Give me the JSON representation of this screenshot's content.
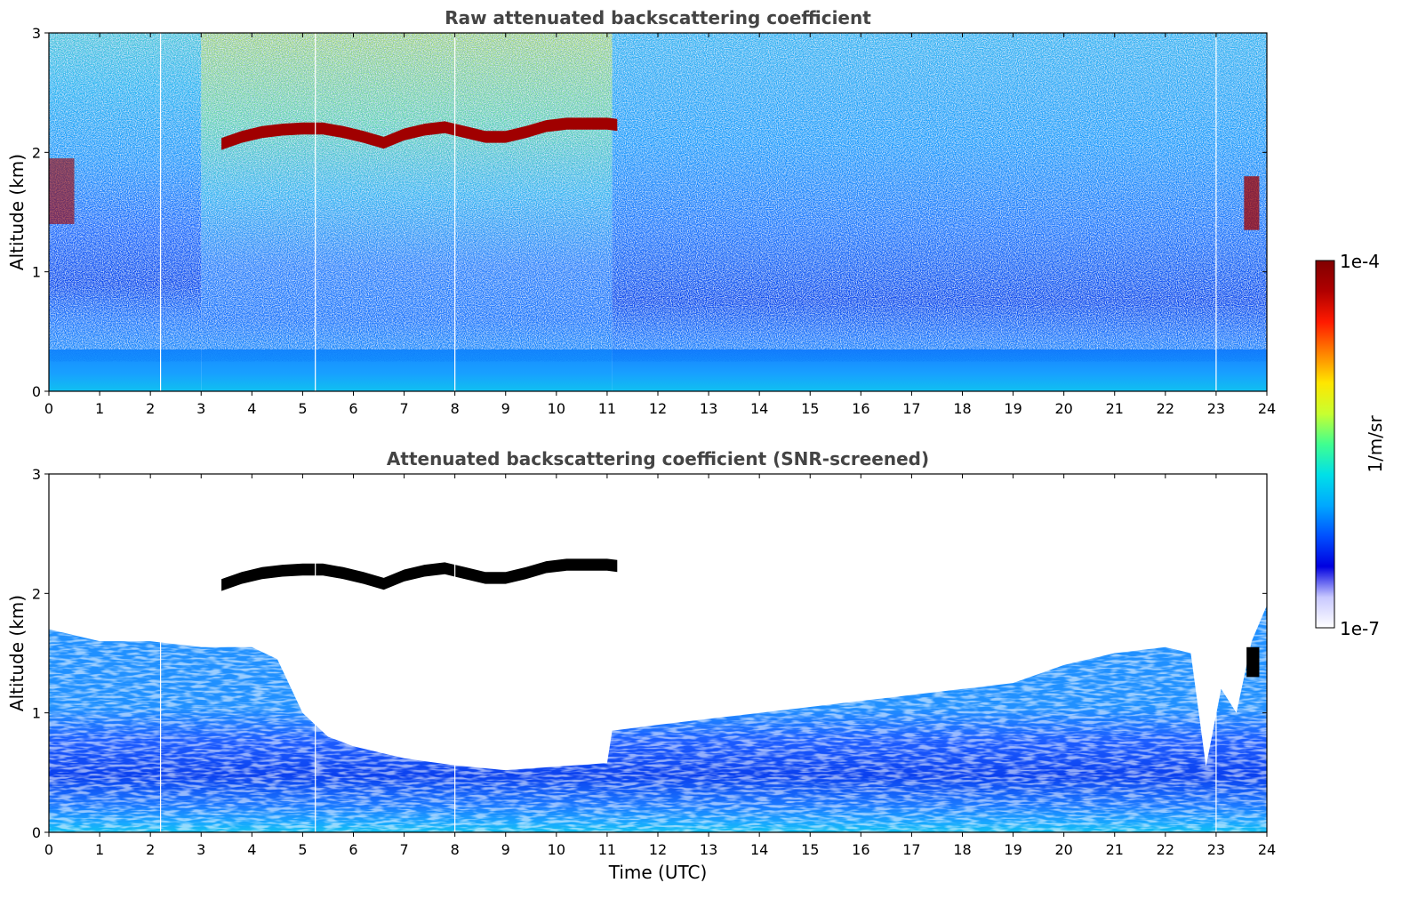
{
  "colors": {
    "colormap": [
      "#ffffff",
      "#c8c8ff",
      "#0000e0",
      "#0050ff",
      "#00a8ff",
      "#00e0e8",
      "#40ff90",
      "#c8ff30",
      "#ffe600",
      "#ff8000",
      "#ff1a00",
      "#b00000",
      "#800000"
    ],
    "feature": "#a00000",
    "feature_screened": "#000000",
    "title_color": "#444444"
  },
  "colorbar": {
    "min_label": "1e-7",
    "max_label": "1e-4",
    "unit_label": "1/m/sr",
    "scale": "log"
  },
  "chart_data": [
    {
      "type": "heatmap",
      "title": "Raw attenuated backscattering coefficient",
      "xlabel": "",
      "ylabel": "Altitude (km)",
      "xlim": [
        0,
        24
      ],
      "ylim": [
        0,
        3
      ],
      "x_ticks": [
        "0",
        "1",
        "2",
        "3",
        "4",
        "5",
        "6",
        "7",
        "8",
        "9",
        "10",
        "11",
        "12",
        "13",
        "14",
        "15",
        "16",
        "17",
        "18",
        "19",
        "20",
        "21",
        "22",
        "23",
        "24"
      ],
      "y_ticks": [
        "0",
        "1",
        "2",
        "3"
      ],
      "layer_top_km": [
        [
          3.4,
          2.12
        ],
        [
          3.8,
          2.18
        ],
        [
          4.2,
          2.22
        ],
        [
          4.6,
          2.24
        ],
        [
          5.0,
          2.25
        ],
        [
          5.4,
          2.25
        ],
        [
          5.8,
          2.22
        ],
        [
          6.2,
          2.18
        ],
        [
          6.6,
          2.13
        ],
        [
          7.0,
          2.2
        ],
        [
          7.4,
          2.24
        ],
        [
          7.8,
          2.26
        ],
        [
          8.2,
          2.22
        ],
        [
          8.6,
          2.18
        ],
        [
          9.0,
          2.18
        ],
        [
          9.4,
          2.22
        ],
        [
          9.8,
          2.27
        ],
        [
          10.2,
          2.29
        ],
        [
          10.6,
          2.29
        ],
        [
          11.0,
          2.29
        ],
        [
          11.2,
          2.28
        ]
      ],
      "noise_step_x": 11.1,
      "missing_profiles_x": [
        2.2,
        5.25,
        8.0,
        23.0
      ]
    },
    {
      "type": "heatmap",
      "title": "Attenuated backscattering coefficient (SNR-screened)",
      "xlabel": "Time (UTC)",
      "ylabel": "Altitude (km)",
      "xlim": [
        0,
        24
      ],
      "ylim": [
        0,
        3
      ],
      "x_ticks": [
        "0",
        "1",
        "2",
        "3",
        "4",
        "5",
        "6",
        "7",
        "8",
        "9",
        "10",
        "11",
        "12",
        "13",
        "14",
        "15",
        "16",
        "17",
        "18",
        "19",
        "20",
        "21",
        "22",
        "23",
        "24"
      ],
      "y_ticks": [
        "0",
        "1",
        "2",
        "3"
      ],
      "signal_top_km": [
        [
          0.0,
          1.7
        ],
        [
          1.0,
          1.6
        ],
        [
          2.0,
          1.6
        ],
        [
          3.0,
          1.55
        ],
        [
          4.0,
          1.55
        ],
        [
          4.5,
          1.45
        ],
        [
          5.0,
          1.0
        ],
        [
          5.5,
          0.8
        ],
        [
          6.0,
          0.72
        ],
        [
          7.0,
          0.62
        ],
        [
          8.0,
          0.56
        ],
        [
          9.0,
          0.52
        ],
        [
          10.0,
          0.55
        ],
        [
          11.0,
          0.58
        ],
        [
          11.1,
          0.85
        ],
        [
          12.0,
          0.9
        ],
        [
          13.0,
          0.95
        ],
        [
          14.0,
          1.0
        ],
        [
          15.0,
          1.05
        ],
        [
          16.0,
          1.1
        ],
        [
          17.0,
          1.15
        ],
        [
          18.0,
          1.2
        ],
        [
          19.0,
          1.25
        ],
        [
          20.0,
          1.4
        ],
        [
          21.0,
          1.5
        ],
        [
          22.0,
          1.55
        ],
        [
          22.5,
          1.5
        ],
        [
          22.8,
          0.55
        ],
        [
          23.1,
          1.2
        ],
        [
          23.4,
          1.0
        ],
        [
          23.7,
          1.6
        ],
        [
          24.0,
          1.9
        ]
      ],
      "missing_profiles_x": [
        2.2,
        5.25,
        8.0,
        23.0
      ]
    }
  ]
}
